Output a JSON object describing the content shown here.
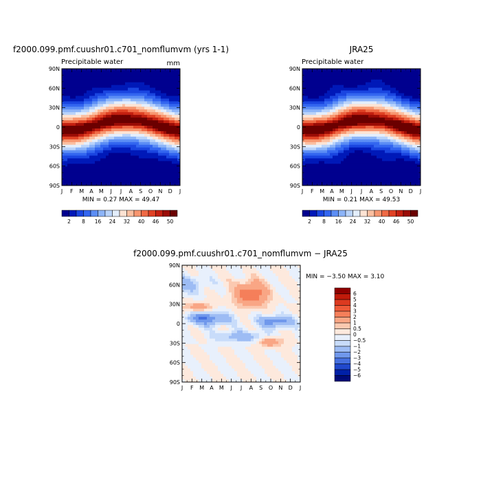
{
  "chart_data": [
    {
      "type": "heatmap",
      "title": "f2000.099.pmf.cuushr01.c701_nomflumvm (yrs 1-1)",
      "subtitle": "Precipitable water",
      "units": "mm",
      "x": [
        "J",
        "F",
        "M",
        "A",
        "M",
        "J",
        "J",
        "A",
        "S",
        "O",
        "N",
        "D",
        "J"
      ],
      "y": [
        "90N",
        "60N",
        "30N",
        "0",
        "30S",
        "60S",
        "90S"
      ],
      "stats_label": "MIN =    0.27 MAX =   49.47",
      "min": 0.27,
      "max": 49.47,
      "colorbar": {
        "labels": [
          "2",
          "8",
          "16",
          "24",
          "32",
          "40",
          "46",
          "50"
        ],
        "colors": [
          "#00008f",
          "#0019b8",
          "#1a45e0",
          "#3366f0",
          "#5c8ef5",
          "#8cb4f8",
          "#b9d3fa",
          "#e3eefc",
          "#fde3d3",
          "#fbbfa0",
          "#f7966f",
          "#ef6a45",
          "#e04124",
          "#c31f10",
          "#9b0c06",
          "#6b0000"
        ]
      }
    },
    {
      "type": "heatmap",
      "title": "JRA25",
      "subtitle": "Precipitable water",
      "x": [
        "J",
        "F",
        "M",
        "A",
        "M",
        "J",
        "J",
        "A",
        "S",
        "O",
        "N",
        "D",
        "J"
      ],
      "y": [
        "90N",
        "60N",
        "30N",
        "0",
        "30S",
        "60S",
        "90S"
      ],
      "stats_label": "MIN =    0.21 MAX =   49.53",
      "min": 0.21,
      "max": 49.53,
      "colorbar": {
        "labels": [
          "2",
          "8",
          "16",
          "24",
          "32",
          "40",
          "46",
          "50"
        ]
      }
    },
    {
      "type": "heatmap",
      "title": "f2000.099.pmf.cuushr01.c701_nomflumvm  −  JRA25",
      "x": [
        "J",
        "F",
        "M",
        "A",
        "M",
        "J",
        "J",
        "A",
        "S",
        "O",
        "N",
        "D",
        "J"
      ],
      "y": [
        "90N",
        "60N",
        "30N",
        "0",
        "30S",
        "60S",
        "90S"
      ],
      "stats_label": "MIN =   −3.50 MAX =    3.10",
      "min": -3.5,
      "max": 3.1,
      "colorbar": {
        "labels": [
          "6",
          "5",
          "4",
          "3",
          "2",
          "1",
          "0.5",
          "0",
          "−0.5",
          "−1",
          "−2",
          "−3",
          "−4",
          "−5",
          "−6"
        ],
        "colors": [
          "#8f0000",
          "#c01a0a",
          "#dc3a20",
          "#ee5a38",
          "#f57f5a",
          "#f9a685",
          "#fbc9b0",
          "#fde9dd",
          "#e8f0fc",
          "#c8dcfa",
          "#9dbcf4",
          "#7098ec",
          "#4670e0",
          "#2048cc",
          "#0020a8",
          "#000a78"
        ]
      }
    }
  ]
}
